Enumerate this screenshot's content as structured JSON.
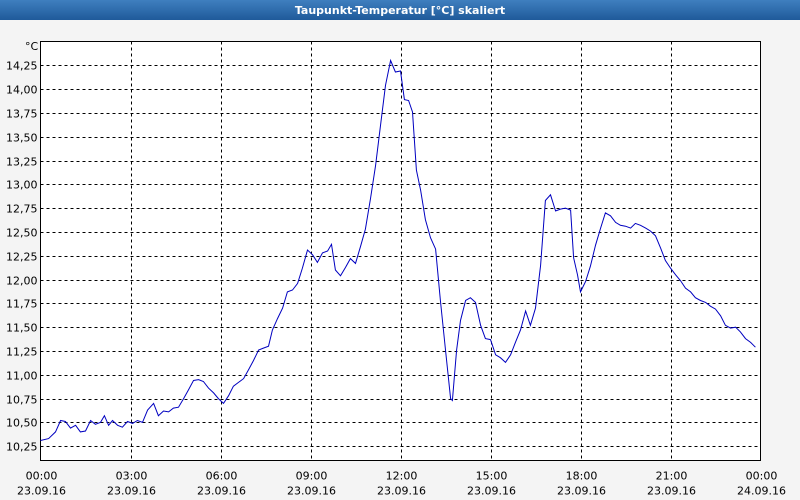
{
  "chart_data": {
    "type": "line",
    "title": "Taupunkt-Temperatur [°C] skaliert",
    "y_label": "°C",
    "x": [
      0,
      0.27,
      0.5,
      0.67,
      0.83,
      1.0,
      1.17,
      1.33,
      1.5,
      1.67,
      1.83,
      2.0,
      2.13,
      2.27,
      2.4,
      2.57,
      2.73,
      2.9,
      3.07,
      3.23,
      3.4,
      3.57,
      3.77,
      3.93,
      4.1,
      4.27,
      4.43,
      4.6,
      4.77,
      4.93,
      5.1,
      5.27,
      5.43,
      5.6,
      5.77,
      5.93,
      6.1,
      6.27,
      6.43,
      6.6,
      6.77,
      6.93,
      7.1,
      7.27,
      7.43,
      7.6,
      7.73,
      7.9,
      8.07,
      8.23,
      8.4,
      8.57,
      8.73,
      8.9,
      9.07,
      9.23,
      9.4,
      9.57,
      9.7,
      9.83,
      10.0,
      10.17,
      10.33,
      10.5,
      10.67,
      10.83,
      11.0,
      11.17,
      11.33,
      11.5,
      11.67,
      11.83,
      12.0,
      12.13,
      12.27,
      12.4,
      12.53,
      12.67,
      12.83,
      13.0,
      13.17,
      13.33,
      13.5,
      13.67,
      13.73,
      13.87,
      14.0,
      14.17,
      14.33,
      14.5,
      14.67,
      14.83,
      15.0,
      15.17,
      15.33,
      15.5,
      15.67,
      15.83,
      16.0,
      16.17,
      16.33,
      16.5,
      16.67,
      16.83,
      17.0,
      17.17,
      17.33,
      17.5,
      17.67,
      17.77,
      17.9,
      18.0,
      18.17,
      18.33,
      18.5,
      18.67,
      18.83,
      19.0,
      19.17,
      19.33,
      19.5,
      19.67,
      19.83,
      20.0,
      20.17,
      20.33,
      20.5,
      20.67,
      20.83,
      21.0,
      21.17,
      21.33,
      21.5,
      21.67,
      21.83,
      22.0,
      22.17,
      22.33,
      22.5,
      22.67,
      22.83,
      23.0,
      23.17,
      23.33,
      23.5,
      23.67,
      23.83
    ],
    "series": [
      {
        "name": "Taupunkt-Temperatur",
        "color": "#0000c0",
        "values": [
          10.31,
          10.33,
          10.4,
          10.52,
          10.51,
          10.44,
          10.47,
          10.4,
          10.41,
          10.52,
          10.48,
          10.5,
          10.57,
          10.47,
          10.52,
          10.47,
          10.45,
          10.51,
          10.49,
          10.52,
          10.5,
          10.63,
          10.7,
          10.57,
          10.62,
          10.61,
          10.65,
          10.66,
          10.75,
          10.84,
          10.94,
          10.95,
          10.93,
          10.86,
          10.81,
          10.75,
          10.7,
          10.78,
          10.88,
          10.92,
          10.96,
          11.05,
          11.15,
          11.26,
          11.28,
          11.3,
          11.47,
          11.59,
          11.7,
          11.87,
          11.89,
          11.96,
          12.12,
          12.31,
          12.26,
          12.18,
          12.28,
          12.3,
          12.37,
          12.1,
          12.04,
          12.13,
          12.22,
          12.17,
          12.35,
          12.53,
          12.85,
          13.2,
          13.61,
          14.04,
          14.3,
          14.18,
          14.19,
          13.89,
          13.88,
          13.76,
          13.15,
          12.94,
          12.63,
          12.44,
          12.32,
          11.78,
          11.26,
          10.75,
          10.73,
          11.26,
          11.57,
          11.78,
          11.81,
          11.76,
          11.52,
          11.38,
          11.37,
          11.21,
          11.18,
          11.13,
          11.21,
          11.34,
          11.47,
          11.67,
          11.52,
          11.7,
          12.15,
          12.83,
          12.89,
          12.72,
          12.74,
          12.75,
          12.73,
          12.23,
          12.05,
          11.87,
          11.98,
          12.14,
          12.36,
          12.54,
          12.7,
          12.67,
          12.6,
          12.57,
          12.56,
          12.54,
          12.59,
          12.57,
          12.54,
          12.51,
          12.46,
          12.33,
          12.2,
          12.12,
          12.05,
          11.99,
          11.91,
          11.87,
          11.81,
          11.78,
          11.76,
          11.72,
          11.69,
          11.62,
          11.52,
          11.49,
          11.5,
          11.45,
          11.38,
          11.34,
          11.29
        ]
      }
    ],
    "xlim": [
      0,
      24
    ],
    "xticks": [
      {
        "value": 0,
        "label": "00:00",
        "date": "23.09.16"
      },
      {
        "value": 3,
        "label": "03:00",
        "date": "23.09.16"
      },
      {
        "value": 6,
        "label": "06:00",
        "date": "23.09.16"
      },
      {
        "value": 9,
        "label": "09:00",
        "date": "23.09.16"
      },
      {
        "value": 12,
        "label": "12:00",
        "date": "23.09.16"
      },
      {
        "value": 15,
        "label": "15:00",
        "date": "23.09.16"
      },
      {
        "value": 18,
        "label": "18:00",
        "date": "23.09.16"
      },
      {
        "value": 21,
        "label": "21:00",
        "date": "23.09.16"
      },
      {
        "value": 24,
        "label": "00:00",
        "date": "24.09.16"
      }
    ],
    "ylim": [
      10.1,
      14.5
    ],
    "yticks": [
      {
        "value": 10.25,
        "label": "10,25"
      },
      {
        "value": 10.5,
        "label": "10,50"
      },
      {
        "value": 10.75,
        "label": "10,75"
      },
      {
        "value": 11,
        "label": "11,00"
      },
      {
        "value": 11.25,
        "label": "11,25"
      },
      {
        "value": 11.5,
        "label": "11,50"
      },
      {
        "value": 11.75,
        "label": "11,75"
      },
      {
        "value": 12,
        "label": "12,00"
      },
      {
        "value": 12.25,
        "label": "12,25"
      },
      {
        "value": 12.5,
        "label": "12,50"
      },
      {
        "value": 12.75,
        "label": "12,75"
      },
      {
        "value": 13,
        "label": "13,00"
      },
      {
        "value": 13.25,
        "label": "13,25"
      },
      {
        "value": 13.5,
        "label": "13,50"
      },
      {
        "value": 13.75,
        "label": "13,75"
      },
      {
        "value": 14,
        "label": "14,00"
      },
      {
        "value": 14.25,
        "label": "14,25"
      }
    ],
    "grid": true
  }
}
